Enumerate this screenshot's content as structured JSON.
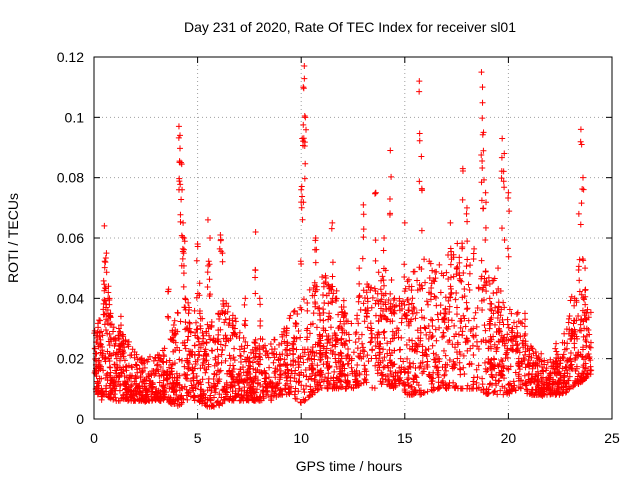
{
  "chart_data": {
    "type": "scatter",
    "title": "Day 231 of 2020, Rate Of TEC Index for receiver sl01",
    "xlabel": "GPS time / hours",
    "ylabel": "ROTI / TECUs",
    "xlim": [
      0,
      25
    ],
    "ylim": [
      0,
      0.12
    ],
    "xticks": [
      0,
      5,
      10,
      15,
      20,
      25
    ],
    "yticks": [
      0,
      0.02,
      0.04,
      0.06,
      0.08,
      0.1,
      0.12
    ],
    "ytick_labels": [
      "0",
      "0.02",
      "0.04",
      "0.06",
      "0.08",
      "0.1",
      "0.12"
    ],
    "grid": true,
    "marker": "plus",
    "series": [
      {
        "color": "#ff0000",
        "points": [
          [
            0.1,
            0.018
          ],
          [
            0.2,
            0.012
          ],
          [
            0.3,
            0.025
          ],
          [
            0.4,
            0.009
          ],
          [
            0.5,
            0.064
          ],
          [
            0.55,
            0.052
          ],
          [
            0.6,
            0.055
          ],
          [
            0.7,
            0.044
          ],
          [
            0.75,
            0.04
          ],
          [
            0.8,
            0.035
          ],
          [
            0.9,
            0.013
          ],
          [
            1.0,
            0.011
          ],
          [
            1.1,
            0.02
          ],
          [
            1.2,
            0.03
          ],
          [
            1.3,
            0.034
          ],
          [
            1.4,
            0.028
          ],
          [
            1.5,
            0.012
          ],
          [
            1.6,
            0.01
          ],
          [
            1.8,
            0.009
          ],
          [
            2.0,
            0.014
          ],
          [
            2.2,
            0.011
          ],
          [
            2.5,
            0.008
          ],
          [
            2.8,
            0.012
          ],
          [
            3.0,
            0.01
          ],
          [
            3.2,
            0.009
          ],
          [
            3.5,
            0.015
          ],
          [
            3.6,
            0.043
          ],
          [
            3.8,
            0.012
          ],
          [
            4.0,
            0.015
          ],
          [
            4.1,
            0.097
          ],
          [
            4.15,
            0.094
          ],
          [
            4.2,
            0.085
          ],
          [
            4.25,
            0.076
          ],
          [
            4.3,
            0.065
          ],
          [
            4.35,
            0.06
          ],
          [
            4.4,
            0.04
          ],
          [
            4.5,
            0.02
          ],
          [
            4.6,
            0.032
          ],
          [
            4.8,
            0.015
          ],
          [
            5.0,
            0.058
          ],
          [
            5.1,
            0.045
          ],
          [
            5.3,
            0.025
          ],
          [
            5.5,
            0.066
          ],
          [
            5.6,
            0.06
          ],
          [
            5.8,
            0.015
          ],
          [
            6.0,
            0.035
          ],
          [
            6.1,
            0.061
          ],
          [
            6.2,
            0.055
          ],
          [
            6.4,
            0.01
          ],
          [
            6.6,
            0.02
          ],
          [
            6.8,
            0.03
          ],
          [
            7.0,
            0.015
          ],
          [
            7.3,
            0.04
          ],
          [
            7.5,
            0.02
          ],
          [
            7.7,
            0.012
          ],
          [
            7.8,
            0.062
          ],
          [
            8.0,
            0.04
          ],
          [
            8.3,
            0.015
          ],
          [
            8.6,
            0.012
          ],
          [
            9.0,
            0.02
          ],
          [
            9.3,
            0.03
          ],
          [
            9.6,
            0.025
          ],
          [
            9.9,
            0.018
          ],
          [
            10.0,
            0.076
          ],
          [
            10.05,
            0.093
          ],
          [
            10.1,
            0.11
          ],
          [
            10.15,
            0.117
          ],
          [
            10.2,
            0.1
          ],
          [
            10.3,
            0.03
          ],
          [
            10.5,
            0.02
          ],
          [
            10.7,
            0.06
          ],
          [
            10.9,
            0.025
          ],
          [
            11.1,
            0.045
          ],
          [
            11.3,
            0.033
          ],
          [
            11.5,
            0.065
          ],
          [
            11.7,
            0.04
          ],
          [
            11.9,
            0.022
          ],
          [
            12.1,
            0.035
          ],
          [
            12.3,
            0.028
          ],
          [
            12.6,
            0.015
          ],
          [
            12.8,
            0.05
          ],
          [
            13.0,
            0.071
          ],
          [
            13.2,
            0.04
          ],
          [
            13.4,
            0.03
          ],
          [
            13.6,
            0.075
          ],
          [
            13.8,
            0.025
          ],
          [
            14.0,
            0.06
          ],
          [
            14.3,
            0.089
          ],
          [
            14.5,
            0.04
          ],
          [
            14.8,
            0.02
          ],
          [
            15.0,
            0.065
          ],
          [
            15.2,
            0.038
          ],
          [
            15.5,
            0.025
          ],
          [
            15.7,
            0.112
          ],
          [
            15.8,
            0.087
          ],
          [
            16.0,
            0.03
          ],
          [
            16.3,
            0.045
          ],
          [
            16.6,
            0.02
          ],
          [
            16.9,
            0.035
          ],
          [
            17.2,
            0.065
          ],
          [
            17.5,
            0.05
          ],
          [
            17.8,
            0.083
          ],
          [
            18.0,
            0.07
          ],
          [
            18.3,
            0.03
          ],
          [
            18.7,
            0.115
          ],
          [
            18.75,
            0.11
          ],
          [
            18.8,
            0.095
          ],
          [
            18.9,
            0.075
          ],
          [
            19.1,
            0.04
          ],
          [
            19.3,
            0.02
          ],
          [
            19.5,
            0.05
          ],
          [
            19.7,
            0.093
          ],
          [
            19.8,
            0.088
          ],
          [
            20.0,
            0.075
          ],
          [
            20.2,
            0.03
          ],
          [
            20.5,
            0.02
          ],
          [
            20.8,
            0.035
          ],
          [
            21.0,
            0.015
          ],
          [
            21.3,
            0.018
          ],
          [
            21.6,
            0.01
          ],
          [
            22.0,
            0.015
          ],
          [
            22.3,
            0.025
          ],
          [
            22.5,
            0.02
          ],
          [
            22.8,
            0.012
          ],
          [
            23.0,
            0.02
          ],
          [
            23.2,
            0.04
          ],
          [
            23.4,
            0.068
          ],
          [
            23.5,
            0.096
          ],
          [
            23.6,
            0.08
          ],
          [
            23.7,
            0.05
          ],
          [
            23.9,
            0.028
          ]
        ]
      }
    ],
    "band": [
      [
        0,
        0.008,
        0.032
      ],
      [
        0.5,
        0.008,
        0.04
      ],
      [
        1,
        0.006,
        0.03
      ],
      [
        1.5,
        0.006,
        0.028
      ],
      [
        2,
        0.006,
        0.022
      ],
      [
        2.5,
        0.006,
        0.02
      ],
      [
        3,
        0.006,
        0.022
      ],
      [
        3.5,
        0.006,
        0.024
      ],
      [
        4,
        0.004,
        0.035
      ],
      [
        4.5,
        0.006,
        0.04
      ],
      [
        5,
        0.006,
        0.035
      ],
      [
        5.5,
        0.004,
        0.032
      ],
      [
        6,
        0.004,
        0.035
      ],
      [
        6.5,
        0.006,
        0.04
      ],
      [
        7,
        0.006,
        0.03
      ],
      [
        7.5,
        0.006,
        0.025
      ],
      [
        8,
        0.006,
        0.028
      ],
      [
        8.5,
        0.006,
        0.025
      ],
      [
        9,
        0.008,
        0.03
      ],
      [
        9.5,
        0.008,
        0.035
      ],
      [
        10,
        0.005,
        0.04
      ],
      [
        10.5,
        0.008,
        0.045
      ],
      [
        11,
        0.01,
        0.05
      ],
      [
        11.5,
        0.01,
        0.045
      ],
      [
        12,
        0.01,
        0.04
      ],
      [
        12.5,
        0.01,
        0.038
      ],
      [
        13,
        0.012,
        0.045
      ],
      [
        13.5,
        0.01,
        0.048
      ],
      [
        14,
        0.012,
        0.05
      ],
      [
        14.5,
        0.01,
        0.048
      ],
      [
        15,
        0.008,
        0.045
      ],
      [
        15.5,
        0.008,
        0.05
      ],
      [
        16,
        0.008,
        0.055
      ],
      [
        16.5,
        0.01,
        0.05
      ],
      [
        17,
        0.01,
        0.055
      ],
      [
        17.5,
        0.01,
        0.06
      ],
      [
        18,
        0.01,
        0.055
      ],
      [
        18.5,
        0.01,
        0.06
      ],
      [
        19,
        0.008,
        0.05
      ],
      [
        19.5,
        0.008,
        0.045
      ],
      [
        20,
        0.008,
        0.04
      ],
      [
        20.5,
        0.01,
        0.035
      ],
      [
        21,
        0.008,
        0.025
      ],
      [
        21.5,
        0.008,
        0.022
      ],
      [
        22,
        0.008,
        0.02
      ],
      [
        22.5,
        0.008,
        0.022
      ],
      [
        23,
        0.01,
        0.04
      ],
      [
        23.5,
        0.012,
        0.045
      ],
      [
        24,
        0.015,
        0.035
      ]
    ]
  }
}
